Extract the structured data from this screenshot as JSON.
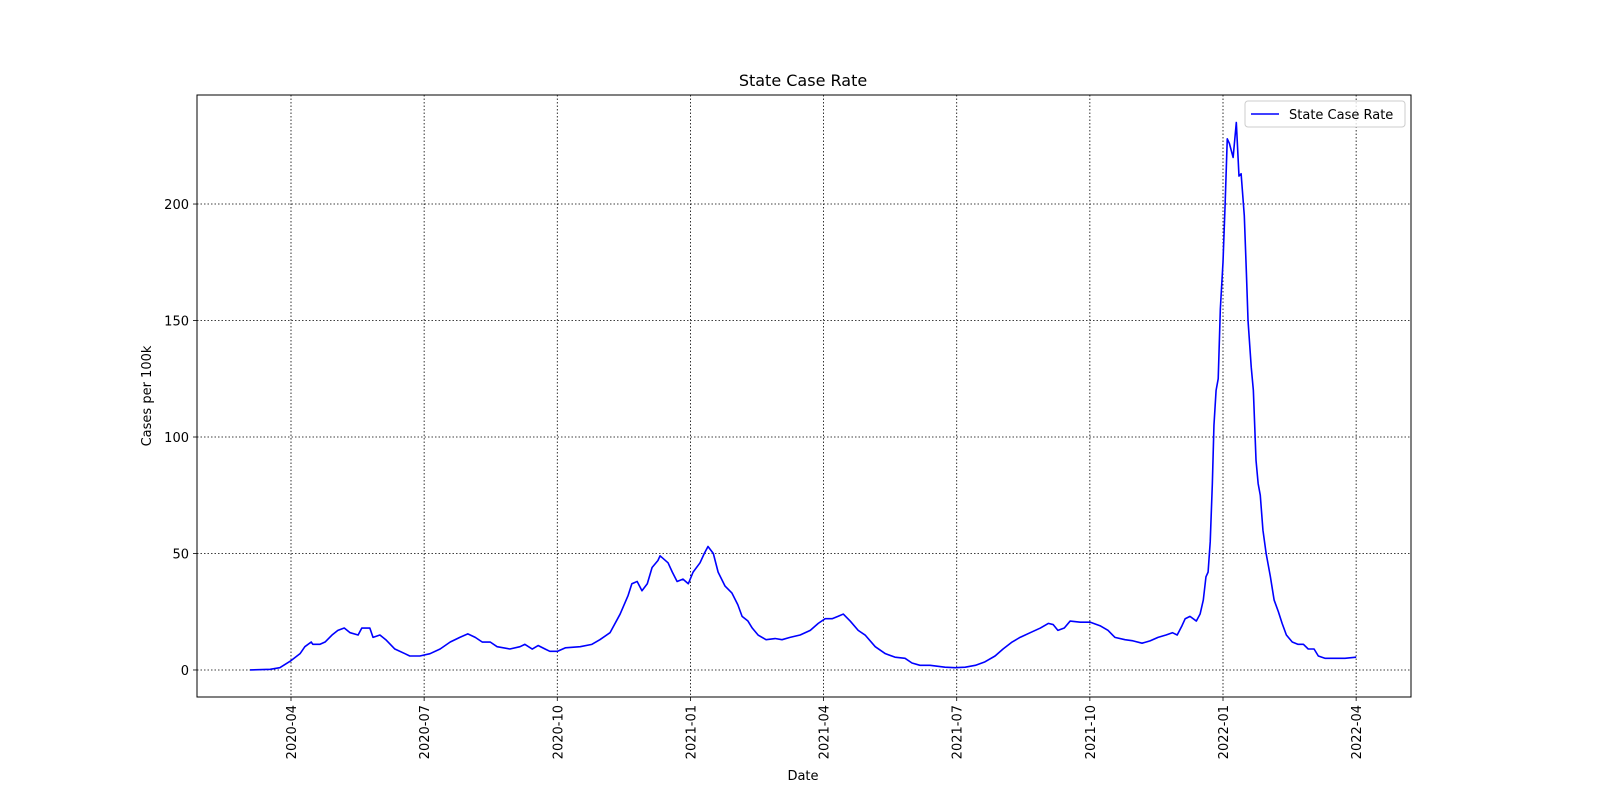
{
  "chart_data": {
    "type": "line",
    "title": "State Case Rate",
    "xlabel": "Date",
    "ylabel": "Cases per 100k",
    "x": [
      2020.173,
      2020.211,
      2020.229,
      2020.25,
      2020.267,
      2020.276,
      2020.288,
      2020.291,
      2020.304,
      2020.314,
      2020.327,
      2020.338,
      2020.35,
      2020.361,
      2020.376,
      2020.383,
      2020.398,
      2020.404,
      2020.417,
      2020.428,
      2020.445,
      2020.464,
      2020.473,
      2020.492,
      2020.511,
      2020.53,
      2020.549,
      2020.567,
      2020.582,
      2020.596,
      2020.609,
      2020.624,
      2020.637,
      2020.661,
      2020.68,
      2020.689,
      2020.703,
      2020.714,
      2020.727,
      2020.736,
      2020.75,
      2020.765,
      2020.793,
      2020.815,
      2020.83,
      2020.849,
      2020.868,
      2020.883,
      2020.89,
      2020.9,
      2020.909,
      2020.919,
      2020.928,
      2020.939,
      2020.943,
      2020.958,
      2020.966,
      2020.975,
      2020.986,
      2020.996,
      2021.005,
      2021.018,
      2021.026,
      2021.033,
      2021.043,
      2021.052,
      2021.065,
      2021.078,
      2021.089,
      2021.097,
      2021.108,
      2021.116,
      2021.127,
      2021.142,
      2021.159,
      2021.172,
      2021.187,
      2021.206,
      2021.225,
      2021.24,
      2021.253,
      2021.266,
      2021.277,
      2021.287,
      2021.3,
      2021.315,
      2021.328,
      2021.347,
      2021.366,
      2021.384,
      2021.403,
      2021.416,
      2021.431,
      2021.45,
      2021.478,
      2021.497,
      2021.516,
      2021.535,
      2021.553,
      2021.572,
      2021.587,
      2021.604,
      2021.619,
      2021.638,
      2021.657,
      2021.672,
      2021.681,
      2021.69,
      2021.702,
      2021.713,
      2021.732,
      2021.751,
      2021.769,
      2021.784,
      2021.797,
      2021.816,
      2021.831,
      2021.848,
      2021.863,
      2021.878,
      2021.893,
      2021.905,
      2021.914,
      2021.923,
      2021.929,
      2021.938,
      2021.95,
      2021.957,
      2021.963,
      2021.968,
      2021.972,
      2021.976,
      2021.98,
      2021.983,
      2021.987,
      2021.991,
      2021.995,
      2022.0,
      2022.004,
      2022.008,
      2022.012,
      2022.019,
      2022.025,
      2022.03,
      2022.034,
      2022.04,
      2022.044,
      2022.047,
      2022.053,
      2022.057,
      2022.062,
      2022.066,
      2022.07,
      2022.075,
      2022.081,
      2022.089,
      2022.096,
      2022.104,
      2022.111,
      2022.119,
      2022.13,
      2022.141,
      2022.151,
      2022.16,
      2022.171,
      2022.179,
      2022.192,
      2022.211,
      2022.229,
      2022.25
    ],
    "series": [
      {
        "name": "State Case Rate",
        "color": "#0000ff",
        "values": [
          0,
          0.3,
          1,
          4,
          7,
          10,
          12,
          11,
          11,
          12,
          15,
          17,
          18,
          16,
          15,
          18,
          18,
          14,
          15,
          13,
          9,
          7,
          6,
          6,
          7,
          9,
          12,
          14,
          15.5,
          14,
          12,
          12,
          10,
          9,
          10,
          11,
          9,
          10.5,
          9,
          8,
          8,
          9.5,
          10,
          11,
          13,
          16,
          24,
          32,
          37,
          38,
          34,
          37,
          44,
          47,
          49,
          46,
          42,
          38,
          39,
          37,
          42,
          46,
          50,
          53,
          50,
          42,
          36,
          33,
          28,
          23,
          21,
          18,
          15,
          13,
          13.5,
          13,
          14,
          15,
          17,
          20,
          22,
          22,
          23,
          24,
          21,
          17,
          15,
          10,
          7,
          5.5,
          5,
          3,
          2,
          2,
          1.2,
          1,
          1.2,
          2,
          3.5,
          6,
          9,
          12,
          14,
          16,
          18,
          20,
          19.5,
          17,
          18,
          21,
          20.5,
          20.5,
          19,
          17,
          14,
          13,
          12.5,
          11.5,
          12.5,
          14,
          15,
          16,
          15,
          19,
          22,
          23,
          21,
          24,
          30,
          40,
          42,
          55,
          80,
          105,
          120,
          125,
          155,
          175,
          200,
          228,
          226,
          220,
          235,
          212,
          213,
          195,
          170,
          150,
          130,
          120,
          90,
          80,
          75,
          60,
          50,
          40,
          30,
          25,
          20,
          15,
          12,
          11,
          11,
          9,
          9,
          6,
          5,
          5,
          5,
          5.5
        ]
      }
    ],
    "xlim": [
      2020.0735,
      2022.353
    ],
    "ylim": [
      -11.6,
      246.8
    ],
    "xticks": [
      {
        "value": 2020.25,
        "label": "2020-04"
      },
      {
        "value": 2020.5,
        "label": "2020-07"
      },
      {
        "value": 2020.75,
        "label": "2020-10"
      },
      {
        "value": 2021.0,
        "label": "2021-01"
      },
      {
        "value": 2021.25,
        "label": "2021-04"
      },
      {
        "value": 2021.5,
        "label": "2021-07"
      },
      {
        "value": 2021.75,
        "label": "2021-10"
      },
      {
        "value": 2022.0,
        "label": "2022-01"
      },
      {
        "value": 2022.25,
        "label": "2022-04"
      }
    ],
    "yticks": [
      0,
      50,
      100,
      150,
      200
    ],
    "grid": true,
    "legend": "upper right"
  }
}
